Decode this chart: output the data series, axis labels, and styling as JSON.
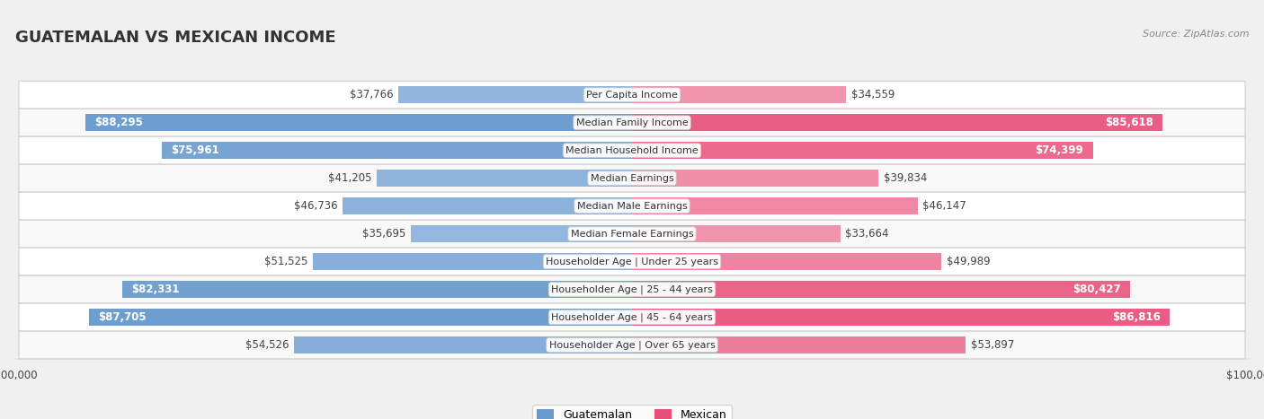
{
  "title": "GUATEMALAN VS MEXICAN INCOME",
  "source": "Source: ZipAtlas.com",
  "categories": [
    "Per Capita Income",
    "Median Family Income",
    "Median Household Income",
    "Median Earnings",
    "Median Male Earnings",
    "Median Female Earnings",
    "Householder Age | Under 25 years",
    "Householder Age | 25 - 44 years",
    "Householder Age | 45 - 64 years",
    "Householder Age | Over 65 years"
  ],
  "guatemalan": [
    37766,
    88295,
    75961,
    41205,
    46736,
    35695,
    51525,
    82331,
    87705,
    54526
  ],
  "mexican": [
    34559,
    85618,
    74399,
    39834,
    46147,
    33664,
    49989,
    80427,
    86816,
    53897
  ],
  "max_val": 100000,
  "guatemalan_light_color": "#adc8e8",
  "guatemalan_dark_color": "#6699cc",
  "mexican_light_color": "#f5b8c8",
  "mexican_dark_color": "#e8507a",
  "text_dark": "#444444",
  "text_white": "#ffffff",
  "background_color": "#f0f0f0",
  "row_bg_even": "#ffffff",
  "row_bg_odd": "#f8f8f8",
  "row_border_color": "#d0d0d0",
  "bar_height": 0.62,
  "inside_label_threshold": 0.6,
  "label_fontsize": 8.5,
  "cat_fontsize": 8.0
}
